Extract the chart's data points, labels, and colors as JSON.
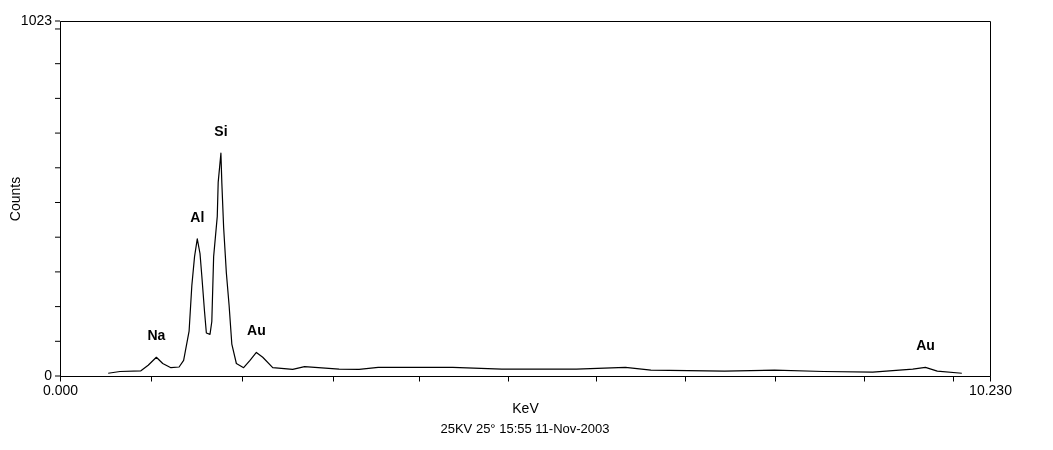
{
  "chart_data": {
    "type": "line",
    "xlabel": "KeV",
    "ylabel": "Counts",
    "x": [
      0.53,
      0.66,
      0.89,
      0.97,
      1.06,
      1.13,
      1.22,
      1.31,
      1.36,
      1.42,
      1.45,
      1.48,
      1.51,
      1.54,
      1.56,
      1.59,
      1.61,
      1.65,
      1.67,
      1.69,
      1.73,
      1.74,
      1.77,
      1.78,
      1.8,
      1.83,
      1.86,
      1.89,
      1.94,
      2.02,
      2.09,
      2.16,
      2.23,
      2.34,
      2.56,
      2.69,
      3.07,
      3.29,
      3.5,
      4.32,
      4.86,
      5.68,
      6.22,
      6.5,
      7.31,
      7.86,
      8.4,
      8.94,
      9.38,
      9.52,
      9.65,
      9.92
    ],
    "series": [
      {
        "color": "#000000",
        "values": [
          8,
          13,
          15,
          31,
          54,
          36,
          24,
          26,
          45,
          129,
          260,
          344,
          395,
          353,
          288,
          185,
          124,
          120,
          157,
          344,
          460,
          558,
          642,
          558,
          428,
          297,
          204,
          92,
          36,
          24,
          45,
          68,
          54,
          24,
          19,
          27,
          20,
          19,
          25,
          25,
          20,
          20,
          25,
          17,
          14,
          17,
          13,
          11,
          20,
          25,
          14,
          8
        ]
      }
    ],
    "xlim": [
      0,
      10.23
    ],
    "xticks": [
      {
        "value": 0,
        "label": "0.000"
      },
      {
        "value": 1.0,
        "label": null
      },
      {
        "value": 2.0,
        "label": null
      },
      {
        "value": 3.0,
        "label": null
      },
      {
        "value": 3.95,
        "label": null
      },
      {
        "value": 4.93,
        "label": null
      },
      {
        "value": 5.9,
        "label": null
      },
      {
        "value": 6.88,
        "label": null
      },
      {
        "value": 7.86,
        "label": null
      },
      {
        "value": 8.84,
        "label": null
      },
      {
        "value": 9.82,
        "label": null
      },
      {
        "value": 10.23,
        "label": "10.230"
      }
    ],
    "ylim": [
      0,
      1023
    ],
    "yticks": [
      {
        "value": 0,
        "label": "0"
      },
      {
        "value": 100,
        "label": null
      },
      {
        "value": 200,
        "label": null
      },
      {
        "value": 300,
        "label": null
      },
      {
        "value": 400,
        "label": null
      },
      {
        "value": 500,
        "label": null
      },
      {
        "value": 600,
        "label": null
      },
      {
        "value": 700,
        "label": null
      },
      {
        "value": 800,
        "label": null
      },
      {
        "value": 900,
        "label": null
      },
      {
        "value": 1000,
        "label": null
      },
      {
        "value": 1023,
        "label": "1023"
      }
    ],
    "grid": false,
    "legend": false,
    "marker": "none",
    "line_style": "solid",
    "annotations": [
      {
        "text": "Na",
        "x": 1.06,
        "y": 54
      },
      {
        "text": "Al",
        "x": 1.51,
        "y": 395
      },
      {
        "text": "Si",
        "x": 1.77,
        "y": 642
      },
      {
        "text": "Au",
        "x": 2.16,
        "y": 68
      },
      {
        "text": "Au",
        "x": 9.52,
        "y": 25
      },
      "25KV 25°  15:55  11-Nov-2003"
    ]
  }
}
